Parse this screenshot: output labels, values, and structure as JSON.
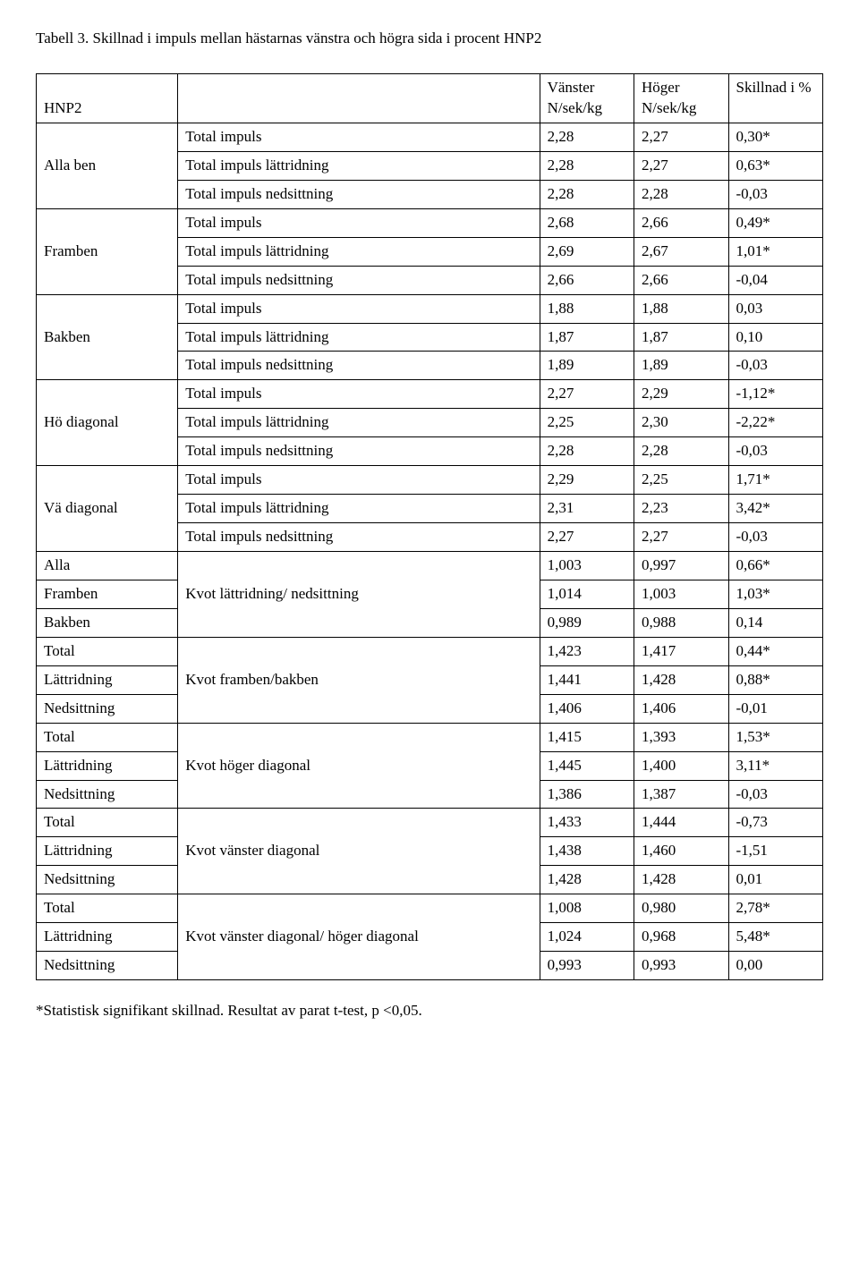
{
  "title": "Tabell 3. Skillnad i impuls mellan hästarnas vänstra och högra sida i procent HNP2",
  "header": {
    "col1": "HNP2",
    "col2": "",
    "col3": "Vänster N/sek/kg",
    "col4": "Höger N/sek/kg",
    "col5": "Skillnad i %"
  },
  "groups": [
    {
      "label": "Alla ben",
      "rows": [
        {
          "measure": "Total impuls",
          "v": "2,28",
          "h": "2,27",
          "d": "0,30*"
        },
        {
          "measure": "Total impuls lättridning",
          "v": "2,28",
          "h": "2,27",
          "d": "0,63*"
        },
        {
          "measure": "Total impuls nedsittning",
          "v": "2,28",
          "h": "2,28",
          "d": "-0,03"
        }
      ]
    },
    {
      "label": "Framben",
      "rows": [
        {
          "measure": "Total impuls",
          "v": "2,68",
          "h": "2,66",
          "d": "0,49*"
        },
        {
          "measure": "Total impuls lättridning",
          "v": "2,69",
          "h": "2,67",
          "d": "1,01*"
        },
        {
          "measure": "Total impuls nedsittning",
          "v": "2,66",
          "h": "2,66",
          "d": "-0,04"
        }
      ]
    },
    {
      "label": "Bakben",
      "rows": [
        {
          "measure": "Total impuls",
          "v": "1,88",
          "h": "1,88",
          "d": "0,03"
        },
        {
          "measure": "Total impuls lättridning",
          "v": "1,87",
          "h": "1,87",
          "d": "0,10"
        },
        {
          "measure": "Total impuls nedsittning",
          "v": "1,89",
          "h": "1,89",
          "d": "-0,03"
        }
      ]
    },
    {
      "label": "Hö diagonal",
      "rows": [
        {
          "measure": "Total impuls",
          "v": "2,27",
          "h": "2,29",
          "d": "-1,12*"
        },
        {
          "measure": "Total impuls lättridning",
          "v": "2,25",
          "h": "2,30",
          "d": "-2,22*"
        },
        {
          "measure": "Total impuls nedsittning",
          "v": "2,28",
          "h": "2,28",
          "d": "-0,03"
        }
      ]
    },
    {
      "label": "Vä diagonal",
      "rows": [
        {
          "measure": "Total impuls",
          "v": "2,29",
          "h": "2,25",
          "d": "1,71*"
        },
        {
          "measure": "Total impuls lättridning",
          "v": "2,31",
          "h": "2,23",
          "d": "3,42*"
        },
        {
          "measure": "Total impuls nedsittning",
          "v": "2,27",
          "h": "2,27",
          "d": "-0,03"
        }
      ]
    }
  ],
  "ratio_groups": [
    {
      "measure": "Kvot lättridning/ nedsittning",
      "rows": [
        {
          "label": "Alla",
          "v": "1,003",
          "h": "0,997",
          "d": "0,66*"
        },
        {
          "label": "Framben",
          "v": "1,014",
          "h": "1,003",
          "d": "1,03*"
        },
        {
          "label": "Bakben",
          "v": "0,989",
          "h": "0,988",
          "d": "0,14"
        }
      ]
    },
    {
      "measure": "Kvot framben/bakben",
      "rows": [
        {
          "label": "Total",
          "v": "1,423",
          "h": "1,417",
          "d": "0,44*"
        },
        {
          "label": "Lättridning",
          "v": "1,441",
          "h": "1,428",
          "d": "0,88*"
        },
        {
          "label": "Nedsittning",
          "v": "1,406",
          "h": "1,406",
          "d": "-0,01"
        }
      ]
    },
    {
      "measure": "Kvot höger diagonal",
      "rows": [
        {
          "label": "Total",
          "v": "1,415",
          "h": "1,393",
          "d": "1,53*"
        },
        {
          "label": "Lättridning",
          "v": "1,445",
          "h": "1,400",
          "d": "3,11*"
        },
        {
          "label": "Nedsittning",
          "v": "1,386",
          "h": "1,387",
          "d": "-0,03"
        }
      ]
    },
    {
      "measure": "Kvot vänster diagonal",
      "rows": [
        {
          "label": "Total",
          "v": "1,433",
          "h": "1,444",
          "d": "-0,73"
        },
        {
          "label": "Lättridning",
          "v": "1,438",
          "h": "1,460",
          "d": "-1,51"
        },
        {
          "label": "Nedsittning",
          "v": "1,428",
          "h": "1,428",
          "d": "0,01"
        }
      ]
    },
    {
      "measure": "Kvot vänster diagonal/ höger diagonal",
      "rows": [
        {
          "label": "Total",
          "v": "1,008",
          "h": "0,980",
          "d": "2,78*"
        },
        {
          "label": "Lättridning",
          "v": "1,024",
          "h": "0,968",
          "d": "5,48*"
        },
        {
          "label": "Nedsittning",
          "v": "0,993",
          "h": "0,993",
          "d": "0,00"
        }
      ]
    }
  ],
  "footnote": "*Statistisk signifikant skillnad. Resultat av parat t-test, p <0,05."
}
